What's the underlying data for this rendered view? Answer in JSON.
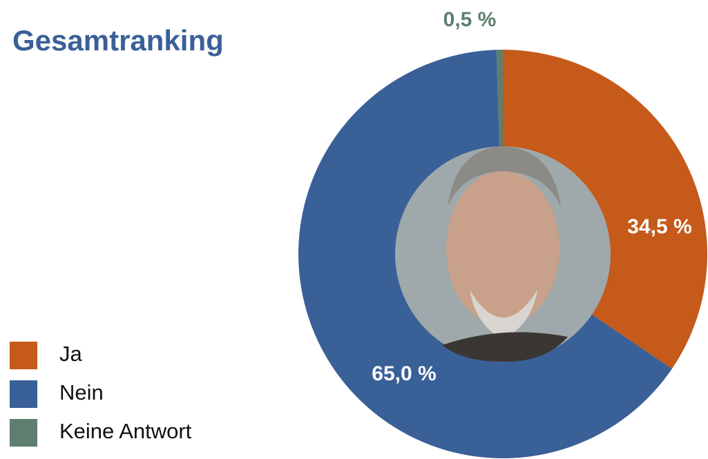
{
  "chart_data": {
    "type": "donut",
    "title": "Gesamtranking",
    "categories": [
      "Ja",
      "Nein",
      "Keine Antwort"
    ],
    "values": [
      34.5,
      65.0,
      0.5
    ],
    "value_labels": [
      "34,5 %",
      "65,0 %",
      "0,5 %"
    ],
    "colors": [
      "#c55a1a",
      "#3a6098",
      "#5e7f6e"
    ]
  }
}
